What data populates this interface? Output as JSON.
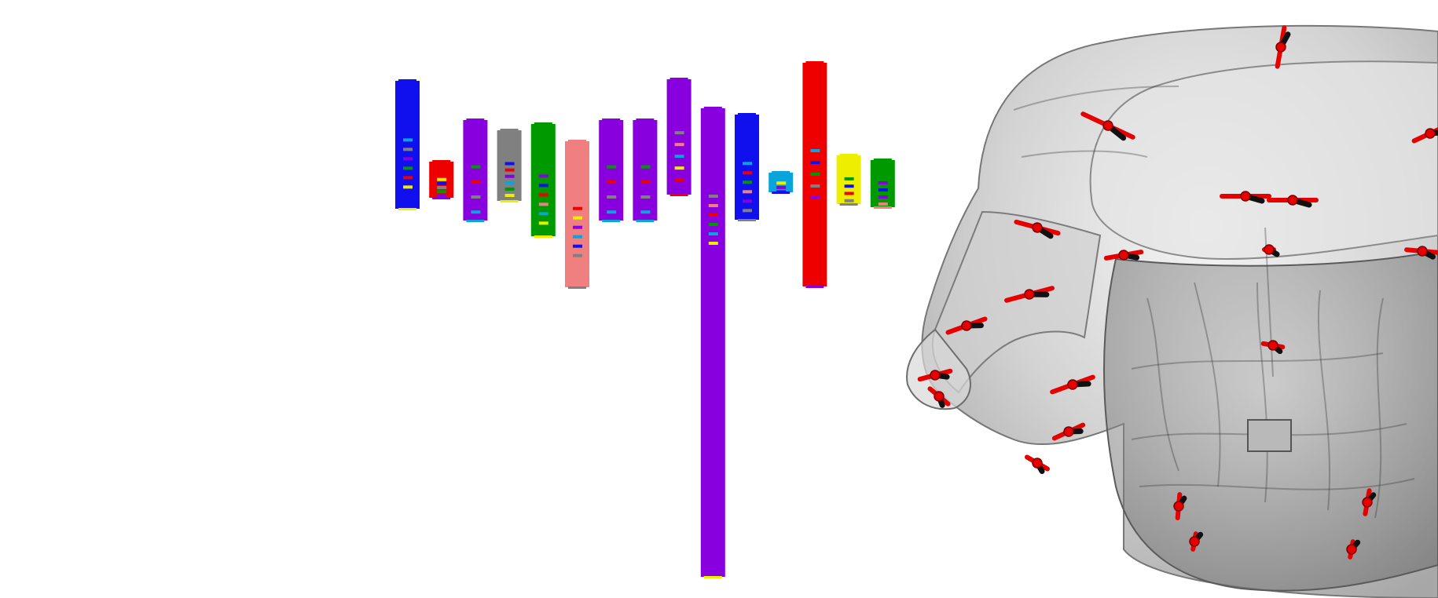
{
  "scene": {
    "background": "#ffffff",
    "left_panel": "electrode-strips",
    "right_panel": "skull-3d-model"
  },
  "colors": {
    "blue": "#1010ee",
    "red": "#ee0000",
    "purple": "#8800dd",
    "gray": "#808080",
    "green": "#009900",
    "salmon": "#f08080",
    "cyan": "#0aa4dd",
    "yellow": "#eeee00",
    "skull": "#9c9c9c",
    "electrode": "#e60000",
    "handle": "#111111"
  },
  "strips": [
    {
      "id": "strip-1",
      "color": "blue",
      "marks": [
        "cyan",
        "gray",
        "purple",
        "green",
        "red",
        "yellow"
      ]
    },
    {
      "id": "strip-2",
      "color": "red",
      "marks": [
        "yellow",
        "blue",
        "gray",
        "green",
        "purple"
      ]
    },
    {
      "id": "strip-3",
      "color": "purple",
      "marks": [
        "green",
        "red",
        "gray",
        "cyan"
      ]
    },
    {
      "id": "strip-4",
      "color": "gray",
      "marks": [
        "blue",
        "red",
        "purple",
        "cyan",
        "green",
        "yellow"
      ]
    },
    {
      "id": "strip-5",
      "color": "green",
      "marks": [
        "purple",
        "blue",
        "red",
        "salmon",
        "cyan",
        "yellow"
      ]
    },
    {
      "id": "strip-6",
      "color": "salmon",
      "marks": [
        "red",
        "yellow",
        "purple",
        "cyan",
        "blue",
        "gray"
      ]
    },
    {
      "id": "strip-7",
      "color": "purple",
      "marks": [
        "green",
        "red",
        "gray",
        "cyan"
      ]
    },
    {
      "id": "strip-8",
      "color": "purple",
      "marks": [
        "green",
        "red",
        "gray",
        "cyan"
      ]
    },
    {
      "id": "strip-9",
      "color": "purple",
      "marks": [
        "gray",
        "salmon",
        "cyan",
        "yellow",
        "red"
      ]
    },
    {
      "id": "strip-10",
      "color": "purple",
      "marks": [
        "gray",
        "salmon",
        "red",
        "green",
        "cyan",
        "yellow"
      ]
    },
    {
      "id": "strip-11",
      "color": "blue",
      "marks": [
        "cyan",
        "red",
        "green",
        "salmon",
        "purple",
        "gray"
      ]
    },
    {
      "id": "strip-12",
      "color": "cyan",
      "marks": [
        "yellow",
        "purple",
        "blue"
      ]
    },
    {
      "id": "strip-13",
      "color": "red",
      "marks": [
        "cyan",
        "blue",
        "green",
        "gray",
        "purple"
      ]
    },
    {
      "id": "strip-14",
      "color": "yellow",
      "marks": [
        "green",
        "blue",
        "red",
        "gray"
      ]
    },
    {
      "id": "strip-15",
      "color": "green",
      "marks": [
        "purple",
        "blue",
        "purple",
        "salmon"
      ]
    }
  ]
}
